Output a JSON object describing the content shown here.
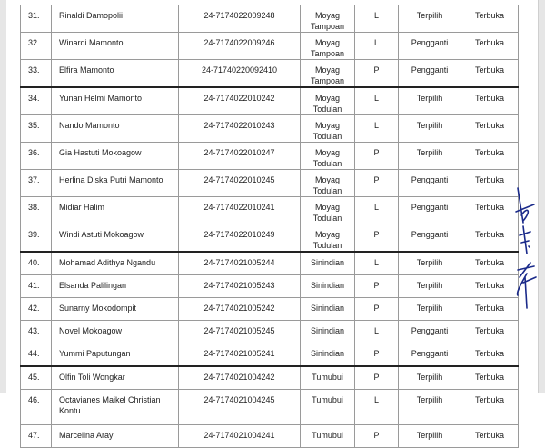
{
  "table": {
    "rows": [
      {
        "no": "31.",
        "name": "Rinaldi Damopolii",
        "id": "24-7174022009248",
        "village": "Moyag Tampoan",
        "gender": "L",
        "status": "Terpilih",
        "type": "Terbuka"
      },
      {
        "no": "32.",
        "name": "Winardi Mamonto",
        "id": "24-7174022009246",
        "village": "Moyag Tampoan",
        "gender": "L",
        "status": "Pengganti",
        "type": "Terbuka"
      },
      {
        "no": "33.",
        "name": "Elfira Mamonto",
        "id": "24-71740220092410",
        "village": "Moyag Tampoan",
        "gender": "P",
        "status": "Pengganti",
        "type": "Terbuka"
      },
      {
        "no": "34.",
        "name": "Yunan Helmi Mamonto",
        "id": "24-7174022010242",
        "village": "Moyag Todulan",
        "gender": "L",
        "status": "Terpilih",
        "type": "Terbuka"
      },
      {
        "no": "35.",
        "name": "Nando Mamonto",
        "id": "24-7174022010243",
        "village": "Moyag Todulan",
        "gender": "L",
        "status": "Terpilih",
        "type": "Terbuka"
      },
      {
        "no": "36.",
        "name": "Gia Hastuti Mokoagow",
        "id": "24-7174022010247",
        "village": "Moyag Todulan",
        "gender": "P",
        "status": "Terpilih",
        "type": "Terbuka"
      },
      {
        "no": "37.",
        "name": "Herlina Diska Putri Mamonto",
        "id": "24-7174022010245",
        "village": "Moyag Todulan",
        "gender": "P",
        "status": "Pengganti",
        "type": "Terbuka"
      },
      {
        "no": "38.",
        "name": "Midiar Halim",
        "id": "24-7174022010241",
        "village": "Moyag Todulan",
        "gender": "L",
        "status": "Pengganti",
        "type": "Terbuka"
      },
      {
        "no": "39.",
        "name": "Windi Astuti Mokoagow",
        "id": "24-7174022010249",
        "village": "Moyag Todulan",
        "gender": "P",
        "status": "Pengganti",
        "type": "Terbuka"
      },
      {
        "no": "40.",
        "name": "Mohamad Adithya Ngandu",
        "id": "24-7174021005244",
        "village": "Sinindian",
        "gender": "L",
        "status": "Terpilih",
        "type": "Terbuka"
      },
      {
        "no": "41.",
        "name": "Elsanda Palilingan",
        "id": "24-7174021005243",
        "village": "Sinindian",
        "gender": "P",
        "status": "Terpilih",
        "type": "Terbuka"
      },
      {
        "no": "42.",
        "name": "Sunarny Mokodompit",
        "id": "24-7174021005242",
        "village": "Sinindian",
        "gender": "P",
        "status": "Terpilih",
        "type": "Terbuka"
      },
      {
        "no": "43.",
        "name": "Novel Mokoagow",
        "id": "24-7174021005245",
        "village": "Sinindian",
        "gender": "L",
        "status": "Pengganti",
        "type": "Terbuka"
      },
      {
        "no": "44.",
        "name": "Yummi Paputungan",
        "id": "24-7174021005241",
        "village": "Sinindian",
        "gender": "P",
        "status": "Pengganti",
        "type": "Terbuka"
      },
      {
        "no": "45.",
        "name": "Olfin Toli Wongkar",
        "id": "24-7174021004242",
        "village": "Tumubui",
        "gender": "P",
        "status": "Terpilih",
        "type": "Terbuka"
      },
      {
        "no": "46.",
        "name": "Octavianes Maikel Christian Kontu",
        "id": "24-7174021004245",
        "village": "Tumubui",
        "gender": "L",
        "status": "Terpilih",
        "type": "Terbuka"
      },
      {
        "no": "47.",
        "name": "Marcelina Aray",
        "id": "24-7174021004241",
        "village": "Tumubui",
        "gender": "P",
        "status": "Terpilih",
        "type": "Terbuka"
      }
    ]
  },
  "signature": {
    "ink_color": "#1a2a8a"
  }
}
